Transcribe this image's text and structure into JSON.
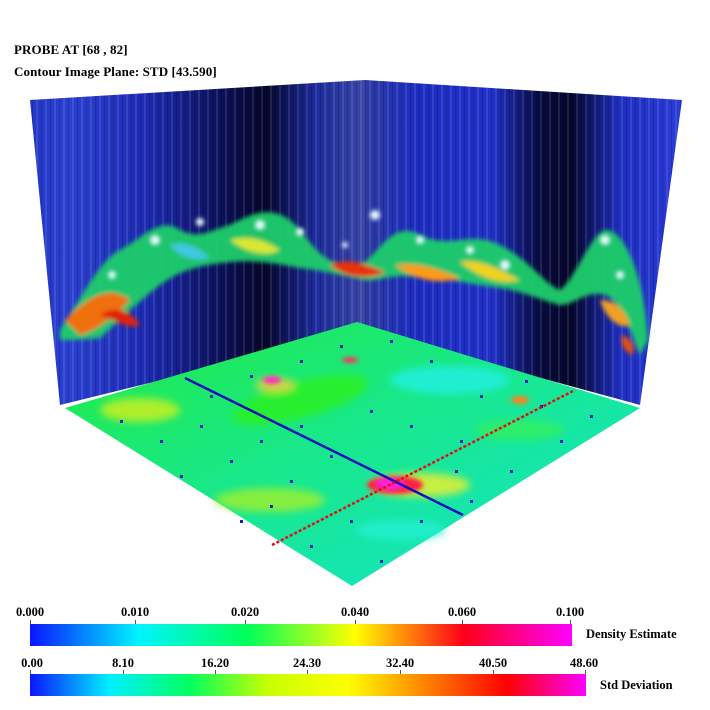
{
  "probe_label": "PROBE AT [68 , 82]",
  "plane_label": "Contour Image Plane: STD  [43.590]",
  "colorbars": [
    {
      "title": "Density Estimate",
      "ticks": [
        "0.000",
        "0.010",
        "0.020",
        "0.040",
        "0.060",
        "0.100"
      ],
      "colors": [
        "#0a16ff",
        "#00f4ff",
        "#00ff5a",
        "#ffff00",
        "#ff0018",
        "#ff00ff"
      ]
    },
    {
      "title": "Std Deviation",
      "ticks": [
        "0.00",
        "8.10",
        "16.20",
        "24.30",
        "32.40",
        "40.50",
        "48.60"
      ],
      "colors": [
        "#0a16ff",
        "#00f0ff",
        "#00ff60",
        "#c8ff00",
        "#ffff00",
        "#ff8000",
        "#ff0000",
        "#ff00ff"
      ]
    }
  ],
  "colors": {
    "wall_blue": "#1a2fc8",
    "wall_dark": "#05063a",
    "floor_green": "#16e85a",
    "floor_cyan": "#16e8c8",
    "probe_line_blue": "#1010c0",
    "probe_line_red": "#e01010"
  }
}
